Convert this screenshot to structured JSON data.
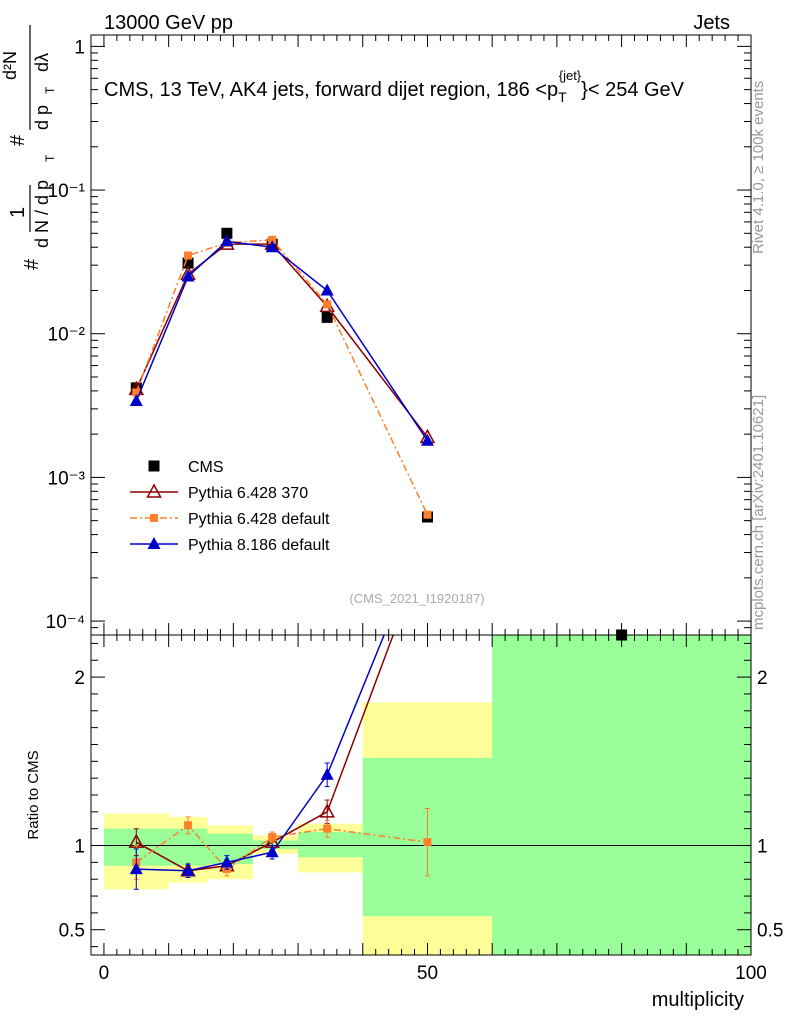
{
  "header": {
    "left": "13000 GeV pp",
    "right": "Jets"
  },
  "side": {
    "top": "Rivet 4.1.0, ≥ 100k events",
    "bottom": "mcplots.cern.ch [arXiv:2401.10621]"
  },
  "chart_data": [
    {
      "type": "line",
      "panel": "main",
      "title": "CMS, 13 TeV, AK4 jets, forward dijet region, 186 <p_T^{jet}< 254 GeV",
      "title_parts": {
        "prefix": "CMS, 13 TeV, AK4 jets, forward dijet region, 186 <p",
        "sub": "T",
        "sup": "{jet}",
        "suffix": "}< 254 GeV"
      },
      "ylabel": "1/(dN/dp_T) d²N/(dp_T dλ)",
      "ylabel_parts": {
        "hash": "#",
        "one": "1",
        "dn": "d N / d p",
        "t": "T",
        "d2n": "d²N",
        "dpt": "d p",
        "dlambda": "dλ"
      },
      "yscale": "log",
      "ylim": [
        8e-05,
        1.2
      ],
      "yticks": [
        {
          "value": 1,
          "label": "1"
        },
        {
          "value": 0.1,
          "label": "10⁻¹"
        },
        {
          "value": 0.01,
          "label": "10⁻²"
        },
        {
          "value": 0.001,
          "label": "10⁻³"
        },
        {
          "value": 0.0001,
          "label": "10⁻⁴"
        }
      ],
      "xlim": [
        -2,
        100
      ],
      "watermark": "(CMS_2021_I1920187)",
      "series": [
        {
          "name": "CMS",
          "color": "#000000",
          "marker": "square",
          "line": "none",
          "x": [
            5,
            13,
            19,
            26,
            34.5,
            50,
            80
          ],
          "y": [
            0.0042,
            0.031,
            0.05,
            0.042,
            0.013,
            0.00053,
            7.2e-05
          ]
        },
        {
          "name": "Pythia 6.428 370",
          "color": "#8b0000",
          "marker": "open-triangle",
          "line": "solid",
          "x": [
            5,
            13,
            19,
            26,
            34.5,
            50
          ],
          "y": [
            0.0041,
            0.026,
            0.042,
            0.042,
            0.0155,
            0.0019
          ]
        },
        {
          "name": "Pythia 6.428 default",
          "color": "#ff7f2a",
          "marker": "square-small",
          "line": "dashdot",
          "x": [
            5,
            13,
            19,
            26,
            34.5,
            50
          ],
          "y": [
            0.0039,
            0.035,
            0.043,
            0.045,
            0.016,
            0.00055
          ]
        },
        {
          "name": "Pythia 8.186 default",
          "color": "#0000cc",
          "marker": "triangle",
          "line": "solid",
          "x": [
            5,
            13,
            19,
            26,
            34.5,
            50
          ],
          "y": [
            0.0034,
            0.025,
            0.044,
            0.04,
            0.02,
            0.0018
          ]
        }
      ]
    },
    {
      "type": "line",
      "panel": "ratio",
      "ylabel": "Ratio to CMS",
      "xlabel": "multiplicity",
      "ylim": [
        0.35,
        2.25
      ],
      "yticks": [
        {
          "value": 0.5,
          "label": "0.5"
        },
        {
          "value": 1,
          "label": "1"
        },
        {
          "value": 2,
          "label": "2"
        }
      ],
      "xlim": [
        -2,
        100
      ],
      "xticks": [
        {
          "value": 0,
          "label": "0"
        },
        {
          "value": 50,
          "label": "50"
        },
        {
          "value": 100,
          "label": "100"
        }
      ],
      "bands": [
        {
          "x0": 0,
          "x1": 10,
          "yellow": [
            0.74,
            1.19
          ],
          "green": [
            0.88,
            1.1
          ]
        },
        {
          "x0": 10,
          "x1": 16,
          "yellow": [
            0.78,
            1.17
          ],
          "green": [
            0.88,
            1.1
          ]
        },
        {
          "x0": 16,
          "x1": 23,
          "yellow": [
            0.8,
            1.12
          ],
          "green": [
            0.89,
            1.07
          ]
        },
        {
          "x0": 23,
          "x1": 30,
          "yellow": [
            0.95,
            1.06
          ],
          "green": [
            0.98,
            1.03
          ]
        },
        {
          "x0": 30,
          "x1": 40,
          "yellow": [
            0.84,
            1.13
          ],
          "green": [
            0.93,
            1.08
          ]
        },
        {
          "x0": 40,
          "x1": 60,
          "yellow": [
            0.35,
            1.85
          ],
          "green": [
            0.58,
            1.52
          ]
        },
        {
          "x0": 60,
          "x1": 100,
          "yellow": [
            0.35,
            2.25
          ],
          "green": [
            0.35,
            2.25
          ]
        }
      ],
      "series": [
        {
          "name": "Pythia 6.428 370",
          "color": "#8b0000",
          "marker": "open-triangle",
          "line": "solid",
          "x": [
            5,
            13,
            19,
            26,
            34.5,
            44.7
          ],
          "y": [
            1.02,
            0.85,
            0.88,
            1.02,
            1.2,
            2.25
          ],
          "err": [
            0.08,
            0.03,
            0.03,
            0.03,
            0.07,
            0
          ]
        },
        {
          "name": "Pythia 6.428 default",
          "color": "#ff7f2a",
          "marker": "square-small",
          "line": "dashdot",
          "x": [
            5,
            13,
            19,
            26,
            34.5,
            50
          ],
          "y": [
            0.9,
            1.12,
            0.86,
            1.05,
            1.1,
            1.02
          ],
          "err": [
            0.1,
            0.05,
            0.04,
            0.03,
            0.05,
            0.2
          ]
        },
        {
          "name": "Pythia 8.186 default",
          "color": "#0000cc",
          "marker": "triangle",
          "line": "solid",
          "x": [
            5,
            13,
            19,
            26,
            34.5,
            43.3
          ],
          "y": [
            0.86,
            0.85,
            0.9,
            0.96,
            1.42,
            2.25
          ],
          "err": [
            0.12,
            0.04,
            0.04,
            0.04,
            0.07,
            0
          ]
        }
      ]
    }
  ]
}
